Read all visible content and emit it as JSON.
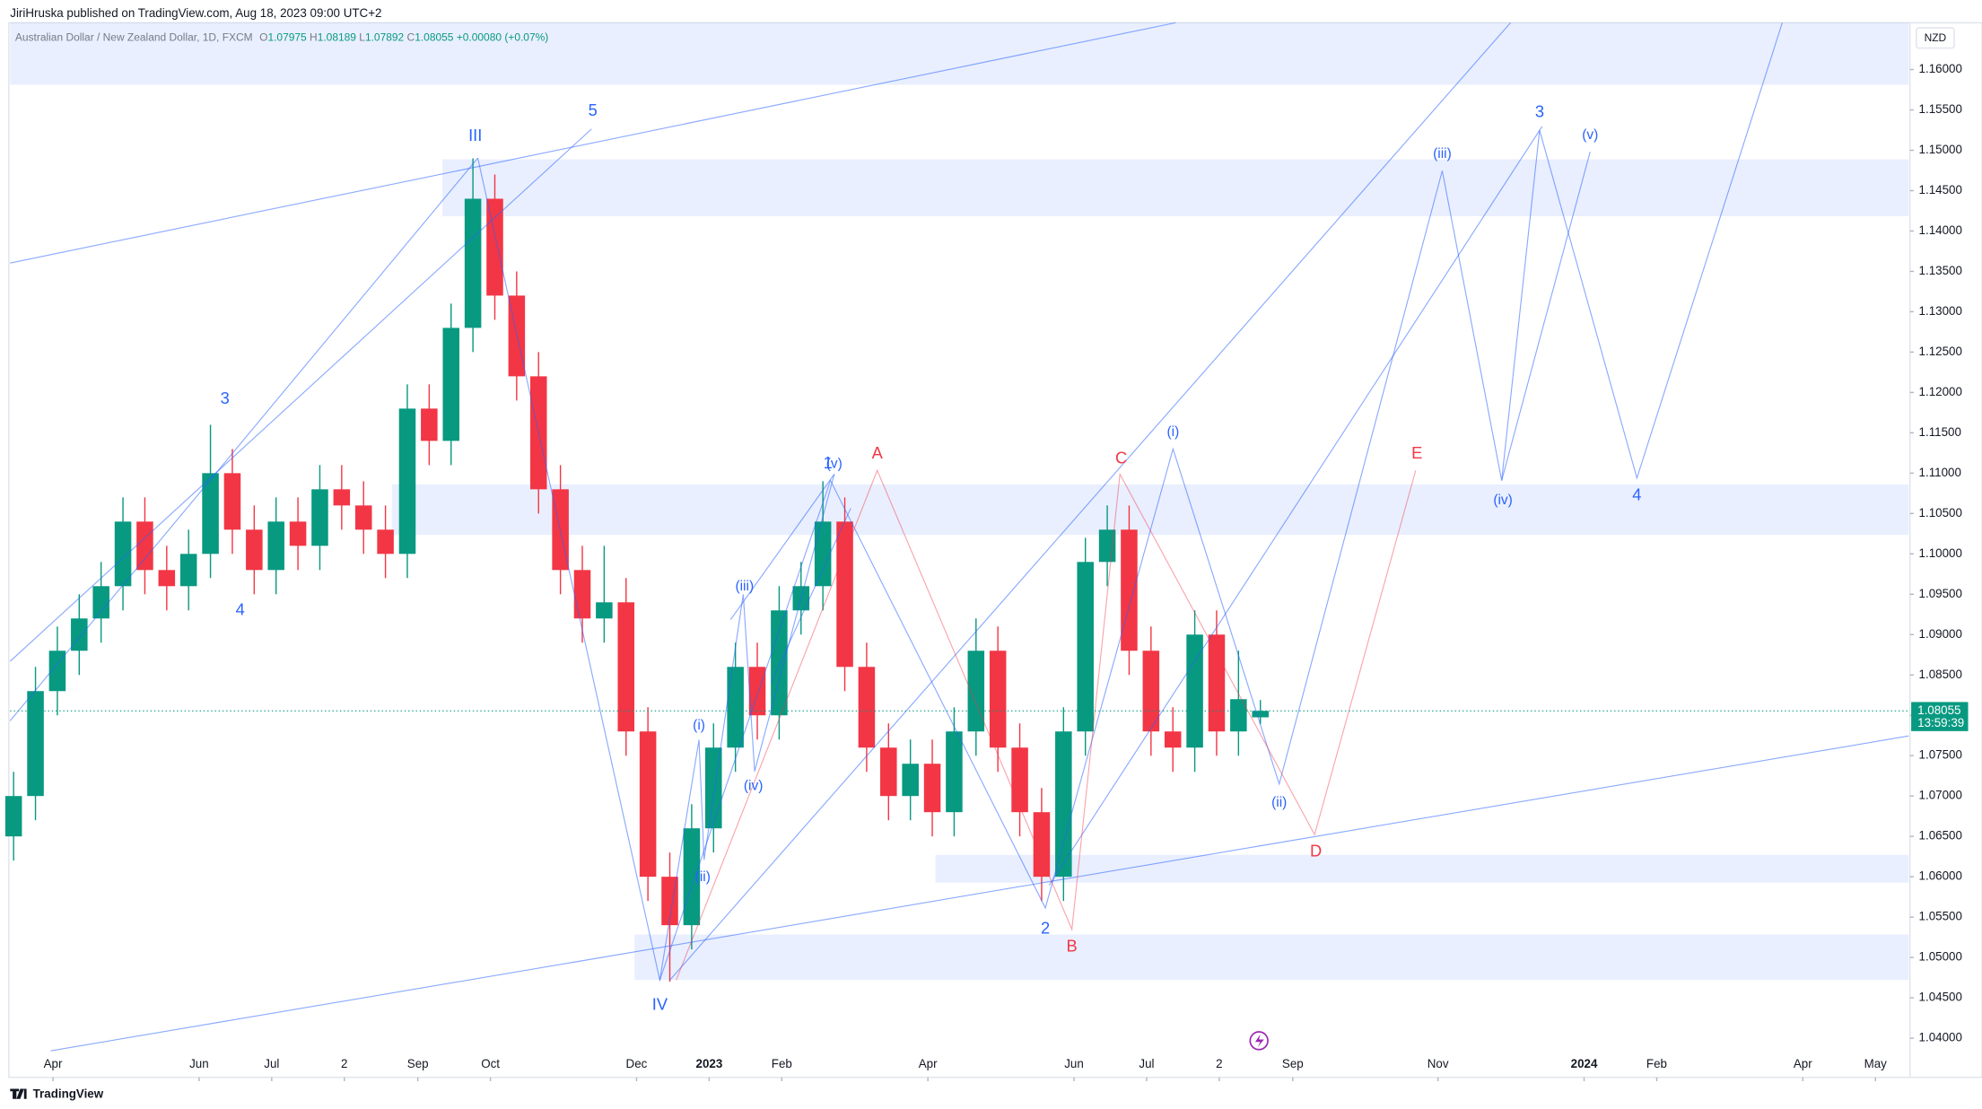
{
  "chart_data": {
    "type": "candlestick",
    "header": "JiriHruska published on TradingView.com, Aug 18, 2023 09:00 UTC+2",
    "symbol": "Australian Dollar / New Zealand Dollar, 1D, FXCM",
    "ohlc_labels": [
      "O",
      "H",
      "L",
      "C"
    ],
    "change": "+0.00080 (+0.07%)",
    "currency": "NZD",
    "countdown": "13:59:39",
    "brand": "TradingView",
    "up_color": "#089981",
    "down_color": "#f23645",
    "xlim": [
      2022.201,
      2024.371
    ],
    "ylim": [
      1.0353,
      1.1658
    ],
    "xticks": [
      {
        "value": 2022.25,
        "label": "Apr"
      },
      {
        "value": 2022.417,
        "label": "Jun"
      },
      {
        "value": 2022.5,
        "label": "Jul"
      },
      {
        "value": 2022.583,
        "label": "2"
      },
      {
        "value": 2022.667,
        "label": "Sep"
      },
      {
        "value": 2022.75,
        "label": "Oct"
      },
      {
        "value": 2022.917,
        "label": "Dec"
      },
      2023,
      {
        "value": 2023.083,
        "label": "Feb"
      },
      {
        "value": 2023.25,
        "label": "Apr"
      },
      {
        "value": 2023.417,
        "label": "Jun"
      },
      {
        "value": 2023.5,
        "label": "Jul"
      },
      {
        "value": 2023.583,
        "label": "2"
      },
      {
        "value": 2023.667,
        "label": "Sep"
      },
      {
        "value": 2023.833,
        "label": "Nov"
      },
      2024,
      {
        "value": 2024.083,
        "label": "Feb"
      },
      {
        "value": 2024.25,
        "label": "Apr"
      },
      {
        "value": 2024.333,
        "label": "May"
      }
    ],
    "yticks": [
      {
        "value": 1.04,
        "label": "1.04000"
      },
      {
        "value": 1.045,
        "label": "1.04500"
      },
      {
        "value": 1.05,
        "label": "1.05000"
      },
      {
        "value": 1.055,
        "label": "1.05500"
      },
      {
        "value": 1.06,
        "label": "1.06000"
      },
      {
        "value": 1.065,
        "label": "1.06500"
      },
      {
        "value": 1.07,
        "label": "1.07000"
      },
      {
        "value": 1.075,
        "label": "1.07500"
      },
      {
        "value": 1.08,
        "label": "1.08000"
      },
      {
        "value": 1.085,
        "label": "1.08500"
      },
      {
        "value": 1.09,
        "label": "1.09000"
      },
      {
        "value": 1.095,
        "label": "1.09500"
      },
      {
        "value": 1.1,
        "label": "1.10000"
      },
      {
        "value": 1.105,
        "label": "1.10500"
      },
      {
        "value": 1.11,
        "label": "1.11000"
      },
      {
        "value": 1.115,
        "label": "1.11500"
      },
      {
        "value": 1.12,
        "label": "1.12000"
      },
      {
        "value": 1.125,
        "label": "1.12500"
      },
      {
        "value": 1.13,
        "label": "1.13000"
      },
      {
        "value": 1.135,
        "label": "1.13500"
      },
      {
        "value": 1.14,
        "label": "1.14000"
      },
      {
        "value": 1.145,
        "label": "1.14500"
      },
      {
        "value": 1.15,
        "label": "1.15000"
      },
      {
        "value": 1.155,
        "label": "1.15500"
      },
      {
        "value": 1.16,
        "label": "1.16000"
      }
    ],
    "x": [
      2022.205,
      2022.23,
      2022.255,
      2022.28,
      2022.305,
      2022.33,
      2022.355,
      2022.38,
      2022.405,
      2022.43,
      2022.455,
      2022.48,
      2022.505,
      2022.53,
      2022.555,
      2022.58,
      2022.605,
      2022.63,
      2022.655,
      2022.68,
      2022.705,
      2022.73,
      2022.755,
      2022.78,
      2022.805,
      2022.83,
      2022.855,
      2022.88,
      2022.905,
      2022.93,
      2022.955,
      2022.98,
      2023.005,
      2023.03,
      2023.055,
      2023.08,
      2023.105,
      2023.13,
      2023.155,
      2023.18,
      2023.205,
      2023.23,
      2023.255,
      2023.28,
      2023.305,
      2023.33,
      2023.355,
      2023.38,
      2023.405,
      2023.43,
      2023.455,
      2023.48,
      2023.505,
      2023.53,
      2023.555,
      2023.58,
      2023.605,
      2023.63
    ],
    "ohlc": [
      [
        1.065,
        1.073,
        1.062,
        1.07
      ],
      [
        1.07,
        1.086,
        1.067,
        1.083
      ],
      [
        1.083,
        1.091,
        1.08,
        1.088
      ],
      [
        1.088,
        1.095,
        1.085,
        1.092
      ],
      [
        1.092,
        1.099,
        1.089,
        1.096
      ],
      [
        1.096,
        1.107,
        1.093,
        1.104
      ],
      [
        1.104,
        1.107,
        1.095,
        1.098
      ],
      [
        1.098,
        1.101,
        1.093,
        1.096
      ],
      [
        1.096,
        1.103,
        1.093,
        1.1
      ],
      [
        1.1,
        1.116,
        1.097,
        1.11
      ],
      [
        1.11,
        1.113,
        1.1,
        1.103
      ],
      [
        1.103,
        1.106,
        1.095,
        1.098
      ],
      [
        1.098,
        1.107,
        1.095,
        1.104
      ],
      [
        1.104,
        1.107,
        1.098,
        1.101
      ],
      [
        1.101,
        1.111,
        1.098,
        1.108
      ],
      [
        1.108,
        1.111,
        1.103,
        1.106
      ],
      [
        1.106,
        1.109,
        1.1,
        1.103
      ],
      [
        1.103,
        1.106,
        1.097,
        1.1
      ],
      [
        1.1,
        1.121,
        1.097,
        1.118
      ],
      [
        1.118,
        1.121,
        1.111,
        1.114
      ],
      [
        1.114,
        1.131,
        1.111,
        1.128
      ],
      [
        1.128,
        1.149,
        1.125,
        1.144
      ],
      [
        1.144,
        1.147,
        1.129,
        1.132
      ],
      [
        1.132,
        1.135,
        1.119,
        1.122
      ],
      [
        1.122,
        1.125,
        1.105,
        1.108
      ],
      [
        1.108,
        1.111,
        1.095,
        1.098
      ],
      [
        1.098,
        1.101,
        1.089,
        1.092
      ],
      [
        1.092,
        1.101,
        1.089,
        1.094
      ],
      [
        1.094,
        1.097,
        1.075,
        1.078
      ],
      [
        1.078,
        1.081,
        1.057,
        1.06
      ],
      [
        1.06,
        1.063,
        1.047,
        1.054
      ],
      [
        1.054,
        1.069,
        1.051,
        1.066
      ],
      [
        1.066,
        1.079,
        1.063,
        1.076
      ],
      [
        1.076,
        1.089,
        1.073,
        1.086
      ],
      [
        1.086,
        1.089,
        1.077,
        1.08
      ],
      [
        1.08,
        1.096,
        1.077,
        1.093
      ],
      [
        1.093,
        1.099,
        1.09,
        1.096
      ],
      [
        1.096,
        1.109,
        1.093,
        1.104
      ],
      [
        1.104,
        1.107,
        1.083,
        1.086
      ],
      [
        1.086,
        1.089,
        1.073,
        1.076
      ],
      [
        1.076,
        1.079,
        1.067,
        1.07
      ],
      [
        1.07,
        1.077,
        1.067,
        1.074
      ],
      [
        1.074,
        1.077,
        1.065,
        1.068
      ],
      [
        1.068,
        1.081,
        1.065,
        1.078
      ],
      [
        1.078,
        1.092,
        1.075,
        1.088
      ],
      [
        1.088,
        1.091,
        1.073,
        1.076
      ],
      [
        1.076,
        1.079,
        1.065,
        1.068
      ],
      [
        1.068,
        1.071,
        1.057,
        1.06
      ],
      [
        1.06,
        1.081,
        1.057,
        1.078
      ],
      [
        1.078,
        1.102,
        1.075,
        1.099
      ],
      [
        1.099,
        1.106,
        1.096,
        1.103
      ],
      [
        1.103,
        1.106,
        1.085,
        1.088
      ],
      [
        1.088,
        1.091,
        1.075,
        1.078
      ],
      [
        1.078,
        1.081,
        1.073,
        1.076
      ],
      [
        1.076,
        1.093,
        1.073,
        1.09
      ],
      [
        1.09,
        1.093,
        1.075,
        1.078
      ],
      [
        1.078,
        1.088,
        1.075,
        1.082
      ],
      [
        1.07975,
        1.08189,
        1.07892,
        1.08055
      ]
    ],
    "wave_labels": [
      "III",
      "5",
      "3",
      "4",
      "IV",
      "(i)",
      "(ii)",
      "(iii)",
      "(iv)",
      "1",
      "(v)",
      "A",
      "2",
      "B",
      "C",
      "(i)",
      "(ii)",
      "D",
      "E",
      "(iii)",
      "3",
      "(v)",
      "(iv)",
      "4"
    ]
  }
}
